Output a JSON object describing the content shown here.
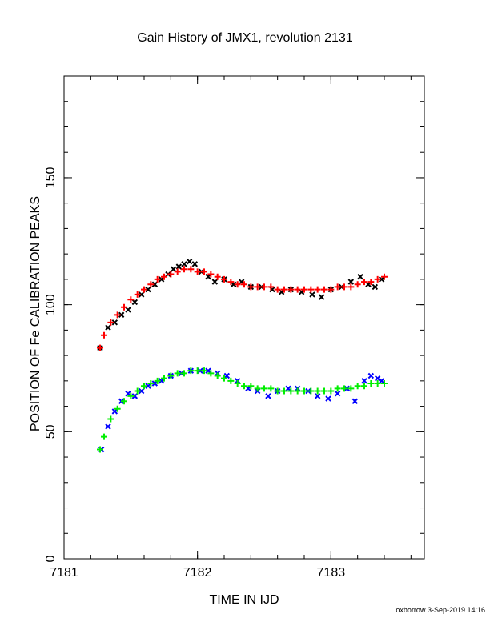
{
  "chart_data": {
    "type": "scatter",
    "title": "Gain History of JMX1, revolution 2131",
    "xlabel": "TIME IN IJD",
    "ylabel": "POSITION OF Fe CALIBRATION PEAKS",
    "xlim": [
      7181.0,
      7183.7
    ],
    "ylim": [
      0,
      190
    ],
    "x_ticks": [
      7181,
      7182,
      7183
    ],
    "y_ticks": [
      0,
      50,
      100,
      150
    ],
    "grid": false,
    "series": [
      {
        "color": "#000000",
        "marker": "x",
        "x": [
          7181.27,
          7181.33,
          7181.38,
          7181.43,
          7181.48,
          7181.53,
          7181.58,
          7181.63,
          7181.68,
          7181.73,
          7181.78,
          7181.82,
          7181.86,
          7181.9,
          7181.94,
          7181.98,
          7182.03,
          7182.08,
          7182.13,
          7182.2,
          7182.27,
          7182.33,
          7182.4,
          7182.48,
          7182.56,
          7182.63,
          7182.7,
          7182.78,
          7182.86,
          7182.93,
          7183.0,
          7183.08,
          7183.15,
          7183.22,
          7183.28,
          7183.33,
          7183.38
        ],
        "y": [
          83,
          91,
          93,
          96,
          98,
          101,
          104,
          106,
          108,
          110,
          112,
          114,
          115,
          116,
          117,
          116,
          113,
          111,
          109,
          110,
          108,
          109,
          107,
          107,
          106,
          105,
          106,
          105,
          104,
          103,
          106,
          107,
          109,
          111,
          108,
          107,
          110
        ]
      },
      {
        "color": "#ff0000",
        "marker": "+",
        "x": [
          7181.27,
          7181.3,
          7181.35,
          7181.4,
          7181.45,
          7181.5,
          7181.55,
          7181.6,
          7181.65,
          7181.7,
          7181.75,
          7181.8,
          7181.85,
          7181.9,
          7181.95,
          7182.0,
          7182.05,
          7182.1,
          7182.15,
          7182.2,
          7182.25,
          7182.3,
          7182.35,
          7182.4,
          7182.45,
          7182.5,
          7182.55,
          7182.6,
          7182.65,
          7182.7,
          7182.75,
          7182.8,
          7182.85,
          7182.9,
          7182.95,
          7183.0,
          7183.05,
          7183.1,
          7183.15,
          7183.2,
          7183.25,
          7183.3,
          7183.35,
          7183.4
        ],
        "y": [
          83,
          88,
          93,
          96,
          99,
          102,
          104,
          106,
          108,
          110,
          111,
          112,
          113,
          114,
          114,
          113,
          113,
          112,
          111,
          110,
          109,
          108,
          108,
          107,
          107,
          107,
          107,
          106,
          106,
          106,
          106,
          106,
          106,
          106,
          106,
          106,
          107,
          107,
          107,
          108,
          109,
          109,
          110,
          111
        ]
      },
      {
        "color": "#0000ff",
        "marker": "x",
        "x": [
          7181.28,
          7181.33,
          7181.38,
          7181.43,
          7181.48,
          7181.53,
          7181.58,
          7181.63,
          7181.68,
          7181.73,
          7181.8,
          7181.88,
          7181.95,
          7182.02,
          7182.08,
          7182.15,
          7182.22,
          7182.3,
          7182.38,
          7182.45,
          7182.53,
          7182.6,
          7182.68,
          7182.75,
          7182.83,
          7182.9,
          7182.98,
          7183.05,
          7183.12,
          7183.18,
          7183.25,
          7183.3,
          7183.35,
          7183.38
        ],
        "y": [
          43,
          52,
          58,
          62,
          65,
          64,
          66,
          68,
          69,
          70,
          72,
          73,
          74,
          74,
          74,
          73,
          72,
          70,
          67,
          66,
          64,
          66,
          67,
          67,
          66,
          64,
          63,
          65,
          67,
          62,
          70,
          72,
          71,
          70
        ]
      },
      {
        "color": "#00ee00",
        "marker": "+",
        "x": [
          7181.27,
          7181.3,
          7181.35,
          7181.4,
          7181.45,
          7181.5,
          7181.55,
          7181.6,
          7181.65,
          7181.7,
          7181.75,
          7181.8,
          7181.85,
          7181.9,
          7181.95,
          7182.0,
          7182.05,
          7182.1,
          7182.15,
          7182.2,
          7182.25,
          7182.3,
          7182.35,
          7182.4,
          7182.45,
          7182.5,
          7182.55,
          7182.6,
          7182.65,
          7182.7,
          7182.75,
          7182.8,
          7182.85,
          7182.9,
          7182.95,
          7183.0,
          7183.05,
          7183.1,
          7183.15,
          7183.2,
          7183.25,
          7183.3,
          7183.35,
          7183.4
        ],
        "y": [
          43,
          48,
          55,
          59,
          62,
          64,
          66,
          68,
          69,
          70,
          71,
          72,
          73,
          73,
          74,
          74,
          74,
          73,
          72,
          71,
          70,
          69,
          68,
          68,
          67,
          67,
          67,
          66,
          66,
          66,
          66,
          66,
          66,
          66,
          66,
          66,
          67,
          67,
          67,
          68,
          68,
          69,
          69,
          69
        ]
      }
    ]
  },
  "footer": {
    "text": "oxborrow  3-Sep-2019 14:16"
  }
}
